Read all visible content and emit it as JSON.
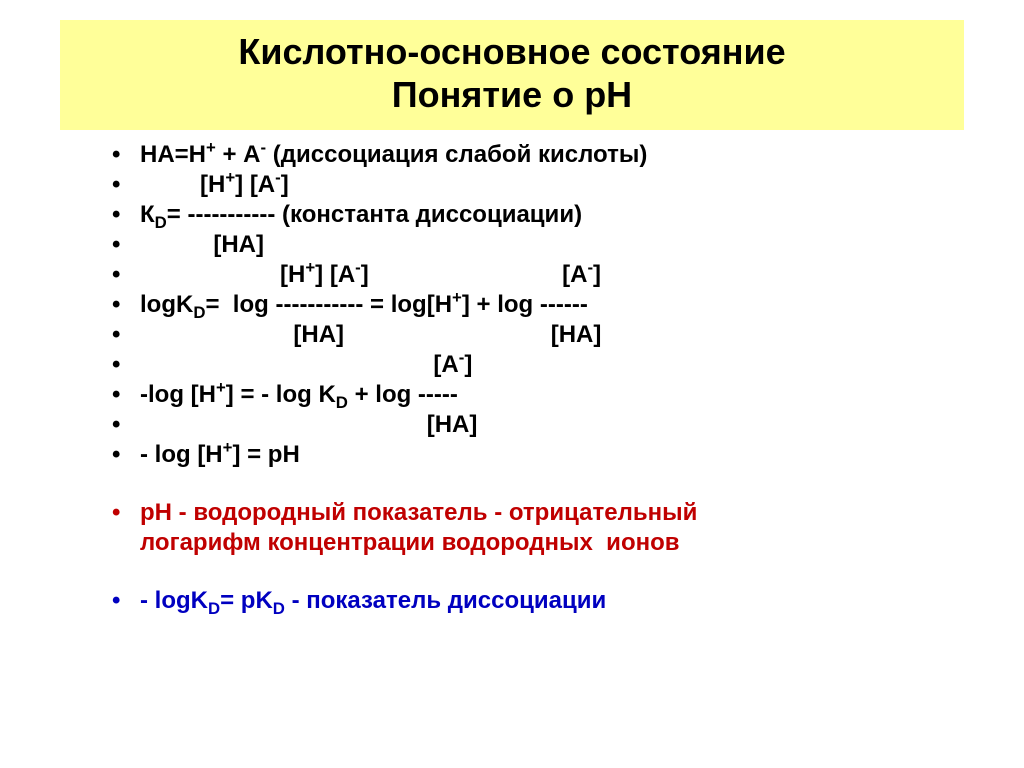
{
  "slide": {
    "background_color": "#ffffff",
    "title": {
      "line1": "Кислотно-основное состояние",
      "line2": "Понятие  о  рН",
      "bg_color": "#ffff99",
      "text_color": "#000000",
      "font_size_pt": 36,
      "font_weight": 700
    },
    "bullets": [
      {
        "type": "text",
        "color": "#000000",
        "html": "НА=Н<sup>+</sup> + А<sup>-</sup> (диссоциация слабой кислоты)"
      },
      {
        "type": "text",
        "color": "#000000",
        "html": "         [H<sup>+</sup>] [A<sup>-</sup>]"
      },
      {
        "type": "text",
        "color": "#000000",
        "html": "К<sub>D</sub>= ----------- (константа диссоциации)"
      },
      {
        "type": "text",
        "color": "#000000",
        "html": "           [HA]"
      },
      {
        "type": "text",
        "color": "#000000",
        "html": "                     [H<sup>+</sup>] [A<sup>-</sup>]                             [A<sup>-</sup>]"
      },
      {
        "type": "text",
        "color": "#000000",
        "html": "logK<sub>D</sub>=  log ----------- = log[H<sup>+</sup>] + log ------"
      },
      {
        "type": "text",
        "color": "#000000",
        "html": "                       [HA]                               [HA]"
      },
      {
        "type": "text",
        "color": "#000000",
        "html": "                                            [A<sup>-</sup>]"
      },
      {
        "type": "text",
        "color": "#000000",
        "html": "-log [H<sup>+</sup>] = - log K<sub>D</sub> + log -----"
      },
      {
        "type": "text",
        "color": "#000000",
        "html": "                                           [HA]"
      },
      {
        "type": "text",
        "color": "#000000",
        "html": "- log [H<sup>+</sup>] = pH"
      },
      {
        "type": "spacer"
      },
      {
        "type": "text",
        "color": "#c00000",
        "html": "рН - водородный показатель - отрицательный"
      },
      {
        "type": "text-nobullet",
        "color": "#c00000",
        "html": "логарифм концентрации водородных  ионов"
      },
      {
        "type": "spacer"
      },
      {
        "type": "text",
        "color": "#0000c0",
        "html": "- logK<sub>D</sub>= pK<sub>D</sub> - показатель диссоциации"
      }
    ],
    "bullet_font_size_pt": 24,
    "bullet_font_weight": 700
  }
}
